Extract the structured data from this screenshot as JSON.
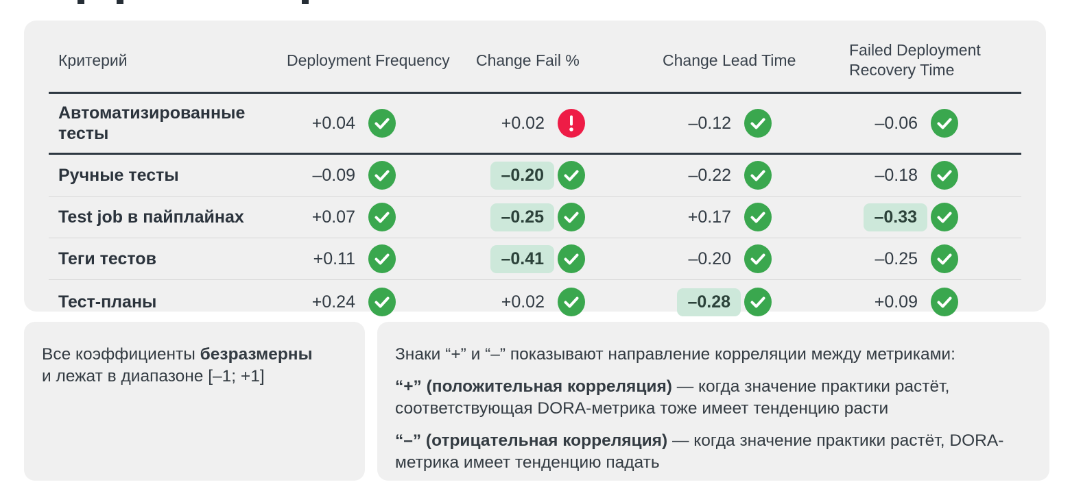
{
  "chart_data": {
    "type": "table",
    "columns": [
      "Критерий",
      "Deployment Frequency",
      "Change Fail %",
      "Change Lead Time",
      "Failed Deployment Recovery Time"
    ],
    "rows": [
      {
        "label": "Автоматизированные тесты",
        "cells": [
          {
            "value": "+0.04",
            "status": "ok",
            "highlight": false
          },
          {
            "value": "+0.02",
            "status": "alert",
            "highlight": false
          },
          {
            "value": "–0.12",
            "status": "ok",
            "highlight": false
          },
          {
            "value": "–0.06",
            "status": "ok",
            "highlight": false
          }
        ]
      },
      {
        "label": "Ручные тесты",
        "cells": [
          {
            "value": "–0.09",
            "status": "ok",
            "highlight": false
          },
          {
            "value": "–0.20",
            "status": "ok",
            "highlight": true
          },
          {
            "value": "–0.22",
            "status": "ok",
            "highlight": false
          },
          {
            "value": "–0.18",
            "status": "ok",
            "highlight": false
          }
        ]
      },
      {
        "label": "Test job в пайплайнах",
        "cells": [
          {
            "value": "+0.07",
            "status": "ok",
            "highlight": false
          },
          {
            "value": "–0.25",
            "status": "ok",
            "highlight": true
          },
          {
            "value": "+0.17",
            "status": "ok",
            "highlight": false
          },
          {
            "value": "–0.33",
            "status": "ok",
            "highlight": true
          }
        ]
      },
      {
        "label": "Теги тестов",
        "cells": [
          {
            "value": "+0.11",
            "status": "ok",
            "highlight": false
          },
          {
            "value": "–0.41",
            "status": "ok",
            "highlight": true
          },
          {
            "value": "–0.20",
            "status": "ok",
            "highlight": false
          },
          {
            "value": "–0.25",
            "status": "ok",
            "highlight": false
          }
        ]
      },
      {
        "label": "Тест-планы",
        "cells": [
          {
            "value": "+0.24",
            "status": "ok",
            "highlight": false
          },
          {
            "value": "+0.02",
            "status": "ok",
            "highlight": false
          },
          {
            "value": "–0.28",
            "status": "ok",
            "highlight": true
          },
          {
            "value": "+0.09",
            "status": "ok",
            "highlight": false
          }
        ]
      }
    ],
    "value_range": "[–1; +1]",
    "icons": {
      "ok": "check-circle-icon",
      "alert": "alert-circle-icon"
    }
  },
  "notes": {
    "left": {
      "line1_regular": "Все коэффициенты ",
      "line1_bold": "безразмерны",
      "line2": "и лежат в диапазоне [–1; +1]"
    },
    "right": {
      "intro": "Знаки “+” и “–” показывают направление корреляции между метриками:",
      "items": [
        {
          "bold": "“+” (положительная корреляция)",
          "rest": " — когда значение практики растёт, соответствующая DORA-метрика тоже имеет тенденцию расти"
        },
        {
          "bold": "“–” (отрицательная корреляция)",
          "rest": " — когда значение практики растёт, DORA-метрика имеет тенденцию падать"
        }
      ]
    }
  },
  "colors": {
    "ok": "#3aa74e",
    "alert": "#ee1c46",
    "highlight_bg": "#cde8da",
    "card_bg": "#f0f0f0",
    "rule_dark": "#2e3842",
    "rule_light": "#d7d7d7"
  }
}
